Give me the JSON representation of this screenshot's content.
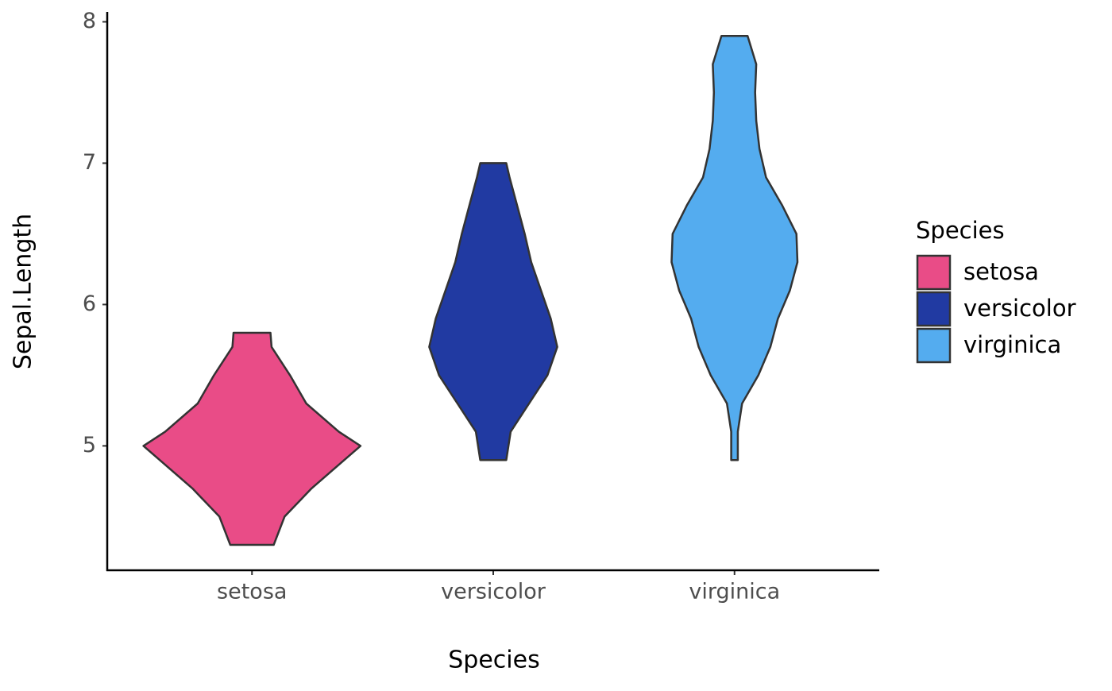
{
  "chart_data": {
    "type": "violin",
    "x_label": "Species",
    "y_label": "Sepal.Length",
    "legend_title": "Species",
    "legend_position": "right",
    "ylim": [
      4.12,
      8.07
    ],
    "yticks": [
      5,
      6,
      7,
      8
    ],
    "categories": [
      "setosa",
      "versicolor",
      "virginica"
    ],
    "series": [
      {
        "name": "setosa",
        "color": "#e94c87",
        "y": [
          4.3,
          4.5,
          4.7,
          4.9,
          5.0,
          5.1,
          5.3,
          5.5,
          5.7,
          5.8
        ],
        "widths": [
          0.2,
          0.3,
          0.55,
          0.85,
          1.0,
          0.8,
          0.5,
          0.35,
          0.18,
          0.17
        ]
      },
      {
        "name": "versicolor",
        "color": "#213aa2",
        "y": [
          4.9,
          5.1,
          5.3,
          5.5,
          5.7,
          5.9,
          6.1,
          6.3,
          6.5,
          6.7,
          6.9,
          7.0
        ],
        "widths": [
          0.12,
          0.16,
          0.33,
          0.5,
          0.59,
          0.53,
          0.44,
          0.35,
          0.29,
          0.22,
          0.15,
          0.12
        ]
      },
      {
        "name": "virginica",
        "color": "#54acef",
        "y": [
          4.9,
          5.1,
          5.3,
          5.5,
          5.7,
          5.9,
          6.1,
          6.3,
          6.5,
          6.7,
          6.9,
          7.1,
          7.3,
          7.5,
          7.7,
          7.9
        ],
        "widths": [
          0.03,
          0.03,
          0.07,
          0.22,
          0.33,
          0.4,
          0.51,
          0.58,
          0.57,
          0.44,
          0.29,
          0.23,
          0.2,
          0.19,
          0.2,
          0.12
        ]
      }
    ]
  }
}
